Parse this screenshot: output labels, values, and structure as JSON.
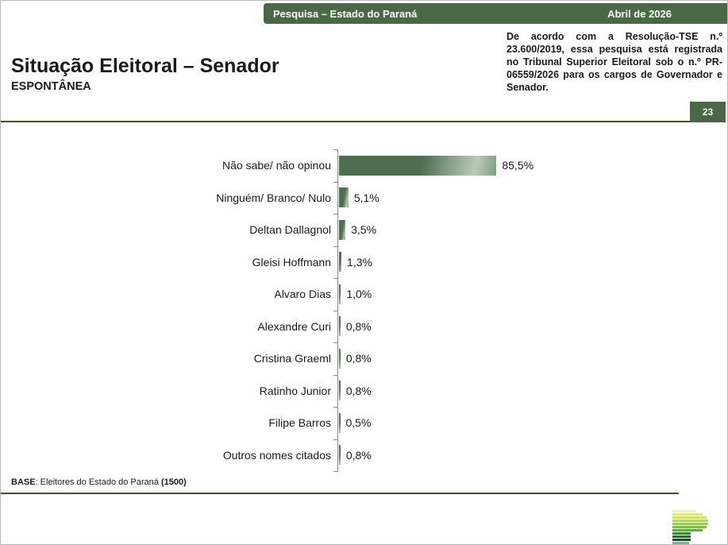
{
  "colors": {
    "brand_green": "#4a6845",
    "rule_green": "#3f5426",
    "bar_fill": "#4e6e50",
    "bar_highlight": "#b9cbb5",
    "axis_gray": "#8a8a8a"
  },
  "header": {
    "left": "Pesquisa – Estado do Paraná",
    "right": "Abril de 2026"
  },
  "title": "Situação Eleitoral – Senador",
  "subtitle": "ESPONTÂNEA",
  "disclaimer": "De acordo com a Resolução-TSE n.º 23.600/2019, essa pesquisa está registrada no Tribunal Superior Eleitoral sob o n.º PR-06559/2026 para os cargos de Governador e Senador.",
  "page_number": "23",
  "chart_data": {
    "type": "bar",
    "orientation": "horizontal",
    "title": "Situação Eleitoral – Senador (Espontânea)",
    "categories": [
      "Não sabe/ não opinou",
      "Ninguém/ Branco/ Nulo",
      "Deltan Dallagnol",
      "Gleisi Hoffmann",
      "Alvaro Dias",
      "Alexandre Curi",
      "Cristina Graeml",
      "Ratinho Junior",
      "Filipe Barros",
      "Outros nomes citados"
    ],
    "values": [
      85.5,
      5.1,
      3.5,
      1.3,
      1.0,
      0.8,
      0.8,
      0.8,
      0.5,
      0.8
    ],
    "value_labels": [
      "85,5%",
      "5,1%",
      "3,5%",
      "1,3%",
      "1,0%",
      "0,8%",
      "0,8%",
      "0,8%",
      "0,5%",
      "0,8%"
    ],
    "xlabel": "",
    "ylabel": "",
    "xlim": [
      0,
      100
    ],
    "grid": false,
    "legend": false,
    "data_label_position": "outside-end"
  },
  "footer": {
    "base_label": "BASE",
    "base_text": ": Eleitores do Estado do Paraná ",
    "base_count": "(1500)"
  },
  "logo": {
    "name": "parana-pesquisas-logo",
    "bars": [
      {
        "w": 30,
        "c": "#eef3c6"
      },
      {
        "w": 38,
        "c": "#dfe98a"
      },
      {
        "w": 43,
        "c": "#d2e170"
      },
      {
        "w": 45,
        "c": "#b5d765"
      },
      {
        "w": 45,
        "c": "#98cb57"
      },
      {
        "w": 43,
        "c": "#7cba50"
      },
      {
        "w": 38,
        "c": "#62a94b"
      },
      {
        "w": 23,
        "c": "#44823e"
      },
      {
        "w": 23,
        "c": "#2f6634"
      },
      {
        "w": 23,
        "c": "#1e4a27"
      },
      {
        "w": 21,
        "c": "#8fa898"
      }
    ]
  }
}
